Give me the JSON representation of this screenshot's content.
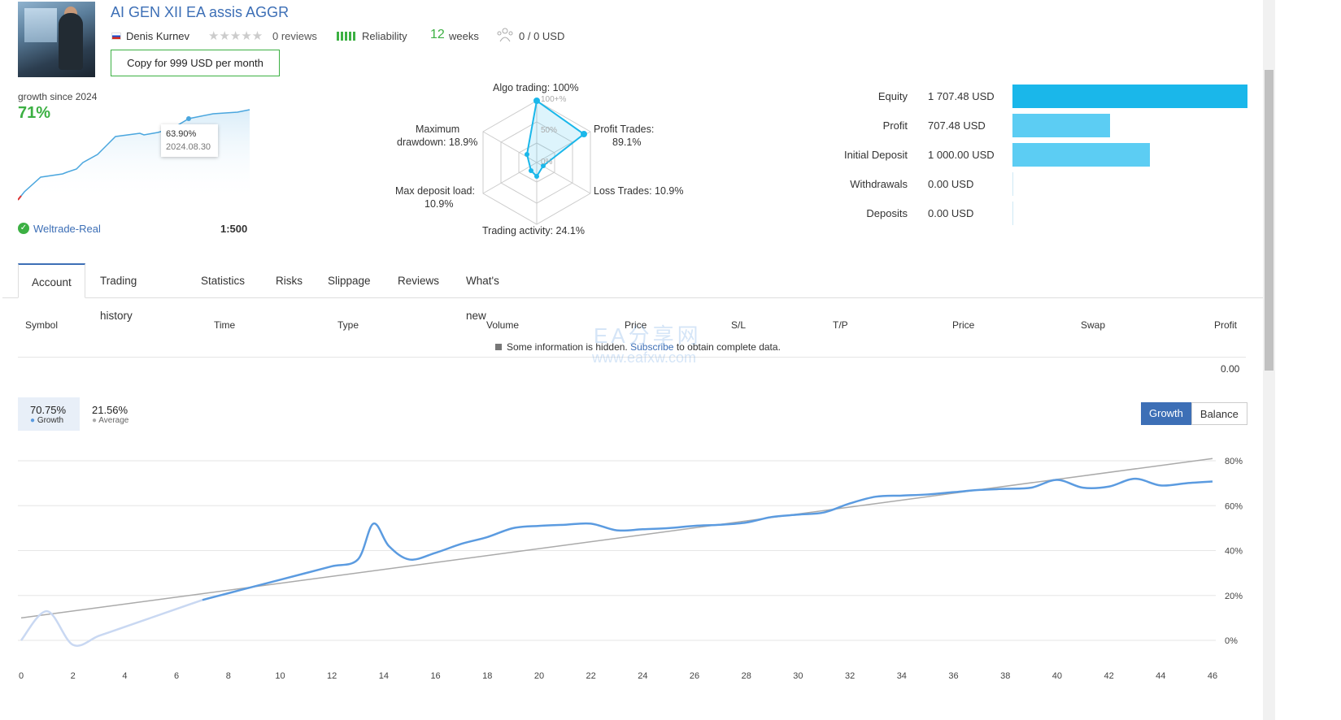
{
  "header": {
    "title": "AI GEN XII EA assis AGGR",
    "author": "Denis Kurnev",
    "reviews": "0 reviews",
    "reliability": "Reliability",
    "weeks_num": "12",
    "weeks_label": "weeks",
    "subscribers": "0 / 0 USD",
    "copy_button": "Copy for 999 USD per month"
  },
  "mini_chart": {
    "growth_since": "growth since 2024",
    "growth_value": "71%",
    "tooltip_value": "63.90%",
    "tooltip_date": "2024.08.30",
    "broker": "Weltrade-Real",
    "leverage": "1:500"
  },
  "radar": {
    "algo": "Algo trading: 100%",
    "profit_trades": "Profit Trades:",
    "profit_trades_val": "89.1%",
    "loss_trades": "Loss Trades: 10.9%",
    "activity": "Trading activity: 24.1%",
    "max_load": "Max deposit load:",
    "max_load_val": "10.9%",
    "drawdown": "Maximum",
    "drawdown_val": "drawdown: 18.9%",
    "scale_100": "100+%",
    "scale_50": "50%",
    "scale_0": "0%"
  },
  "metrics": [
    {
      "label": "Equity",
      "value": "1 707.48 USD",
      "fraction": 1.0,
      "color": "#1ab7ea"
    },
    {
      "label": "Profit",
      "value": "707.48 USD",
      "fraction": 0.414,
      "color": "#5ccdf3"
    },
    {
      "label": "Initial Deposit",
      "value": "1 000.00 USD",
      "fraction": 0.586,
      "color": "#5ccdf3"
    },
    {
      "label": "Withdrawals",
      "value": "0.00 USD",
      "fraction": 0.0,
      "color": "#5ccdf3"
    },
    {
      "label": "Deposits",
      "value": "0.00 USD",
      "fraction": 0.0,
      "color": "#5ccdf3"
    }
  ],
  "tabs": [
    "Account",
    "Trading history",
    "Statistics",
    "Risks",
    "Slippage",
    "Reviews",
    "What's new"
  ],
  "table": {
    "headers": [
      "Symbol",
      "Time",
      "Type",
      "Volume",
      "Price",
      "S/L",
      "T/P",
      "Price",
      "Swap",
      "Profit"
    ],
    "hidden_prefix": "Some information is hidden.",
    "hidden_link": "Subscribe",
    "hidden_suffix": "to obtain complete data.",
    "total": "0.00"
  },
  "legend": {
    "growth_val": "70.75%",
    "growth_lbl": "Growth",
    "avg_val": "21.56%",
    "avg_lbl": "Average"
  },
  "toggle": {
    "growth": "Growth",
    "balance": "Balance"
  },
  "watermark": {
    "line1": "EA分享网",
    "line2": "www.eafxw.com"
  },
  "chart_data": {
    "type": "line",
    "xlabel": "",
    "ylabel": "",
    "xlim": [
      0,
      46
    ],
    "ylim": [
      -10,
      85
    ],
    "x_ticks": [
      0,
      2,
      4,
      6,
      8,
      10,
      12,
      14,
      16,
      18,
      20,
      22,
      24,
      26,
      28,
      30,
      32,
      34,
      36,
      38,
      40,
      42,
      44,
      46
    ],
    "y_ticks": [
      0,
      20,
      40,
      60,
      80
    ],
    "y_tick_labels": [
      "0%",
      "20%",
      "40%",
      "60%",
      "80%"
    ],
    "series": [
      {
        "name": "Growth",
        "color": "#5b9be0",
        "x": [
          0,
          1,
          2,
          3,
          4,
          5,
          6,
          7,
          8,
          9,
          10,
          11,
          12,
          13,
          13.6,
          14.2,
          15,
          16,
          17,
          18,
          19,
          20,
          21,
          22,
          23,
          24,
          25,
          26,
          27,
          28,
          29,
          30,
          31,
          32,
          33,
          34,
          35,
          36,
          37,
          38,
          39,
          40,
          41,
          42,
          43,
          44,
          45,
          46
        ],
        "y": [
          0,
          13,
          -2,
          2,
          6,
          10,
          14,
          18,
          21,
          24,
          27,
          30,
          33,
          36,
          52,
          42,
          36,
          39,
          43,
          46,
          50,
          51,
          51.5,
          52,
          49,
          49.5,
          50,
          51,
          51.5,
          52.5,
          55,
          56,
          57,
          61,
          64,
          64.5,
          65,
          66,
          67,
          67.5,
          68,
          71.5,
          68,
          68.5,
          72,
          69,
          70,
          70.75
        ]
      },
      {
        "color": "#aaaaaa",
        "x": [
          0,
          46
        ],
        "y": [
          10,
          81
        ]
      }
    ]
  }
}
